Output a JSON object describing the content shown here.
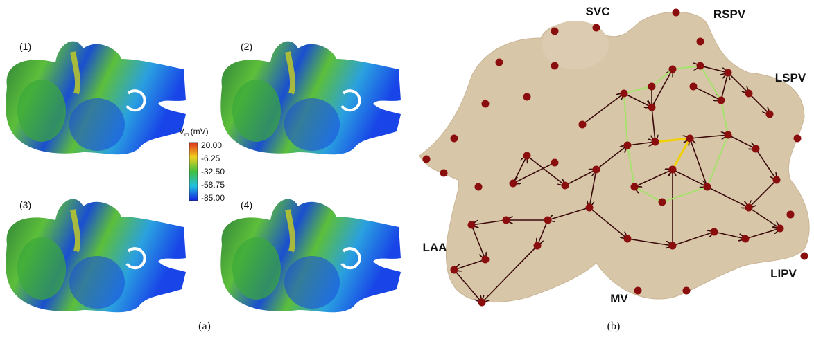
{
  "panel_a": {
    "label": "(a)",
    "snapshots": [
      "(1)",
      "(2)",
      "(3)",
      "(4)"
    ],
    "colorbar": {
      "symbol": "V",
      "subscript": "m",
      "unit": "(mV)",
      "ticks": [
        "20.00",
        "-6.25",
        "-32.50",
        "-58.75",
        "-85.00"
      ]
    }
  },
  "panel_b": {
    "label": "(b)",
    "structures": [
      "SVC",
      "RSPV",
      "LSPV",
      "LAA",
      "MV",
      "LIPV"
    ]
  }
}
